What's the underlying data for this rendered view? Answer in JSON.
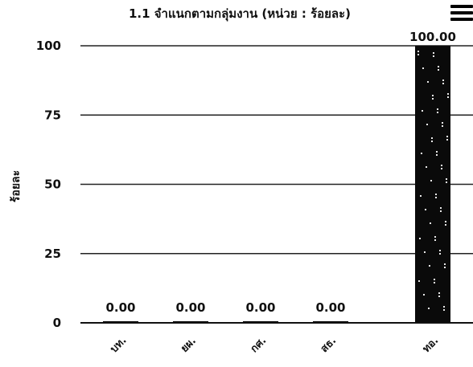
{
  "menu_icon": "hamburger-menu-icon",
  "chart_data": {
    "type": "bar",
    "title": "1.1 จำแนกตามกลุ่มงาน (หน่วย : ร้อยละ)",
    "ylabel": "ร้อยละ",
    "xlabel": "",
    "categories": [
      "บท.",
      "ยผ.",
      "กศ.",
      "สธ.",
      "ทอ."
    ],
    "values": [
      0,
      0,
      0,
      0,
      100
    ],
    "value_labels": [
      "0.00",
      "0.00",
      "0.00",
      "0.00",
      "100.00"
    ],
    "yticks": [
      0,
      25,
      50,
      75,
      100
    ],
    "ylim": [
      0,
      100
    ],
    "grid": true,
    "legend": "none",
    "bar_color": "#0a0a0a"
  }
}
